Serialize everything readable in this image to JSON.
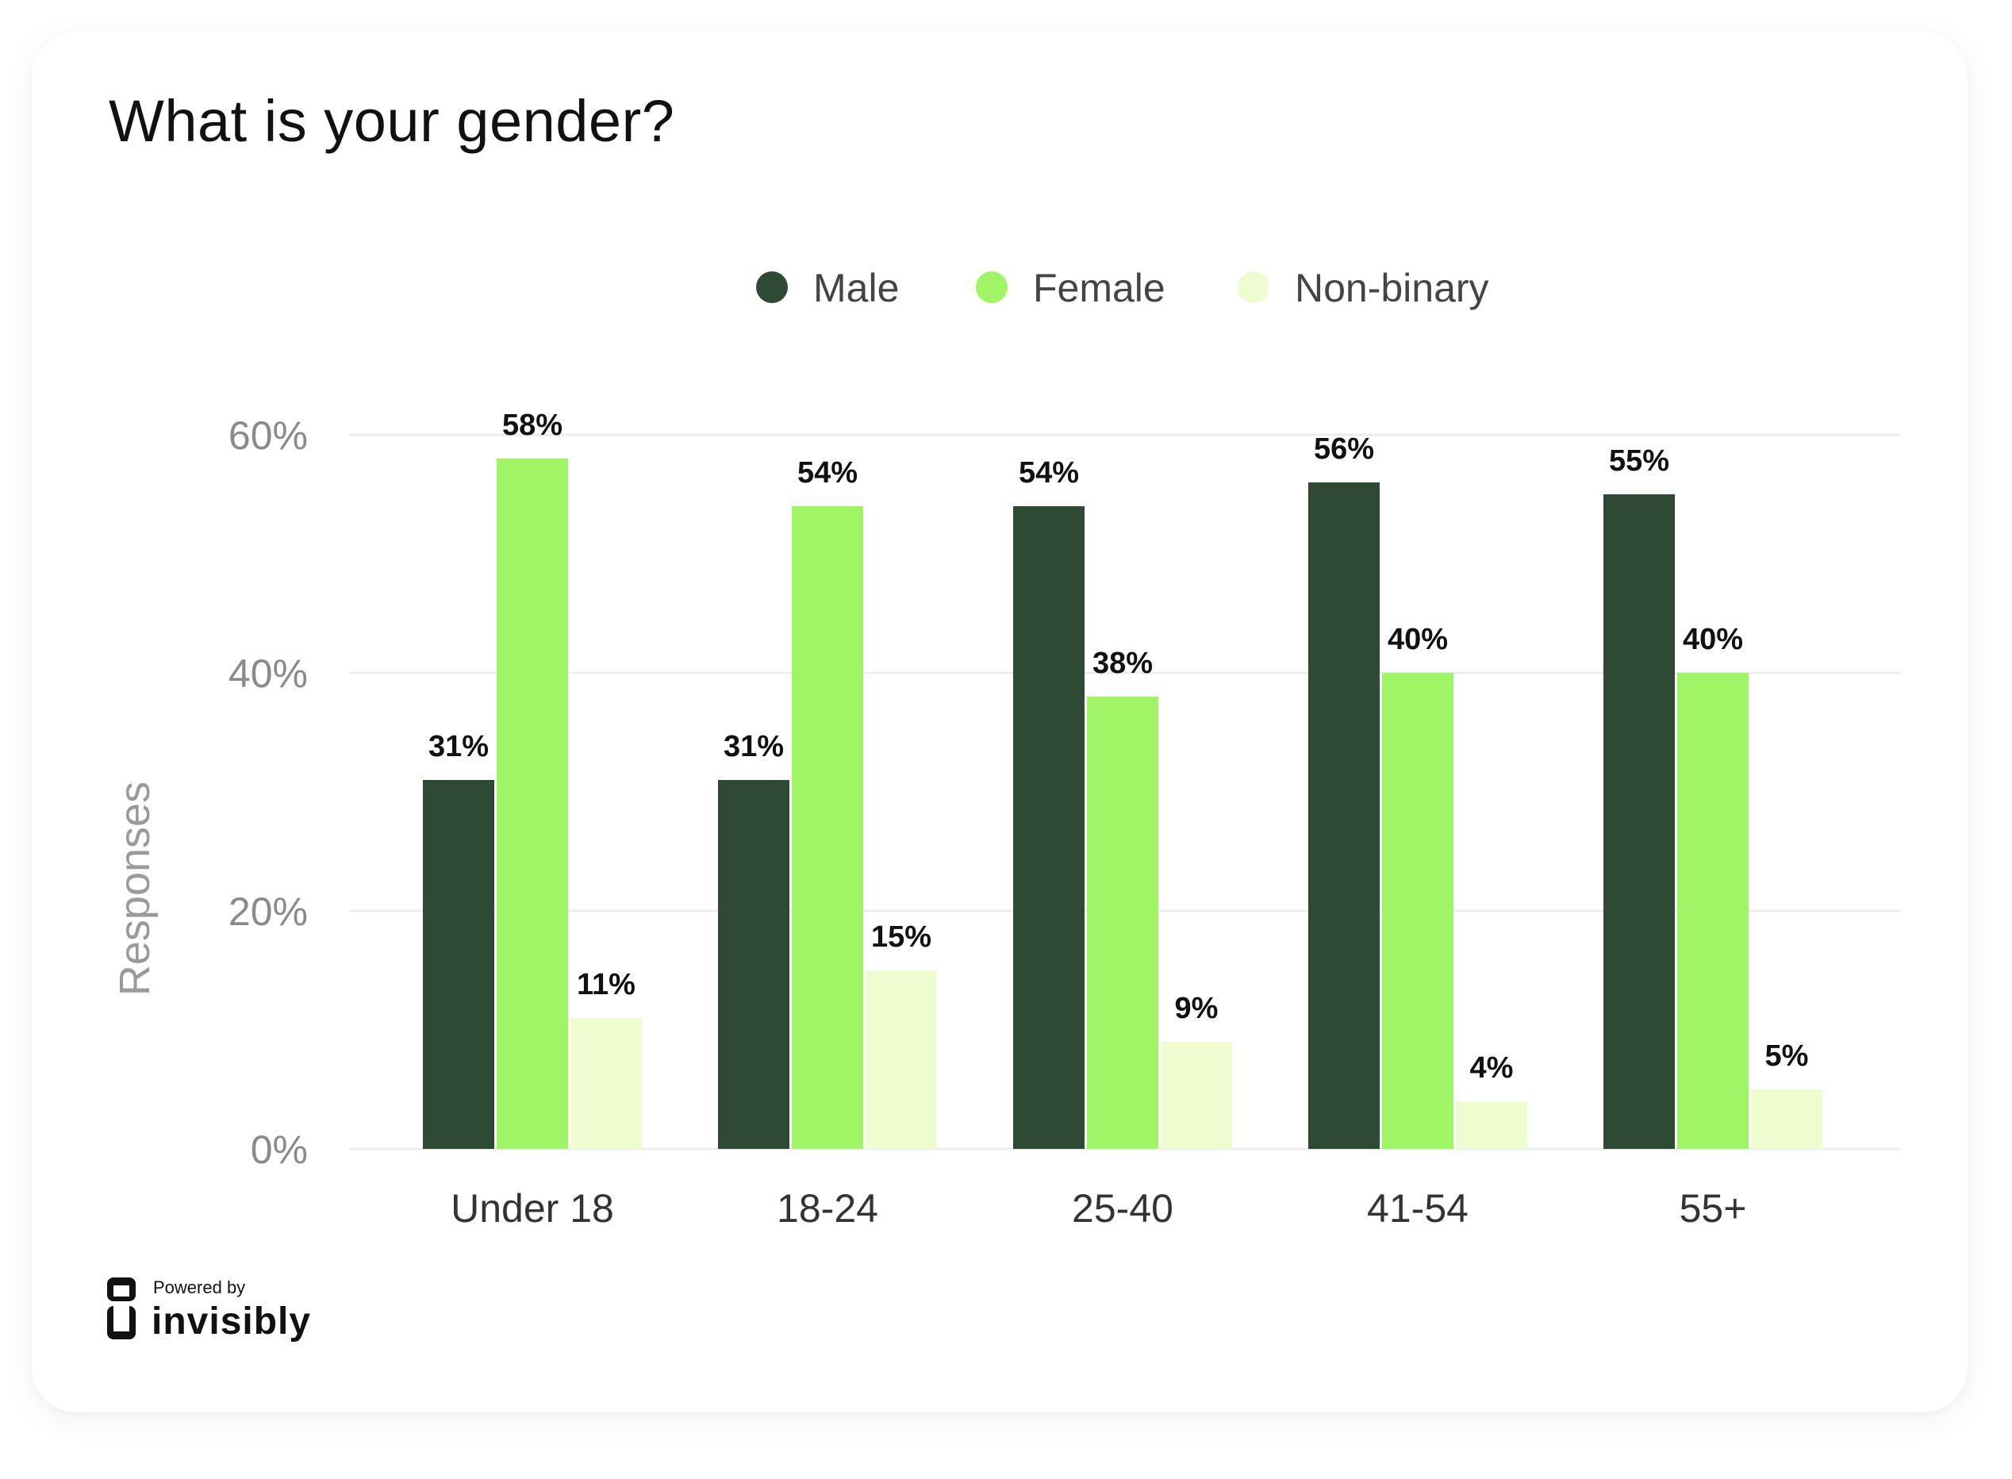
{
  "title": "What is your gender?",
  "branding": {
    "powered_by": "Powered by",
    "name": "invisibly",
    "logo_icon": "invisibly-logo-icon"
  },
  "chart_data": {
    "type": "bar",
    "title": "What is your gender?",
    "xlabel": "",
    "ylabel": "Responses",
    "ylim": [
      0,
      60
    ],
    "yticks": [
      "0%",
      "20%",
      "40%",
      "60%"
    ],
    "ytick_values": [
      0,
      20,
      40,
      60
    ],
    "grid": true,
    "legend_position": "top-center",
    "categories": [
      "Under 18",
      "18-24",
      "25-40",
      "41-54",
      "55+"
    ],
    "series": [
      {
        "name": "Male",
        "color": "#2e4a35",
        "values": [
          31,
          31,
          54,
          56,
          55
        ],
        "labels": [
          "31%",
          "31%",
          "54%",
          "56%",
          "55%"
        ]
      },
      {
        "name": "Female",
        "color": "#a0f566",
        "values": [
          58,
          54,
          38,
          40,
          40
        ],
        "labels": [
          "58%",
          "54%",
          "38%",
          "40%",
          "40%"
        ]
      },
      {
        "name": "Non-binary",
        "color": "#eefcd0",
        "values": [
          11,
          15,
          9,
          4,
          5
        ],
        "labels": [
          "11%",
          "15%",
          "9%",
          "4%",
          "5%"
        ]
      }
    ]
  }
}
